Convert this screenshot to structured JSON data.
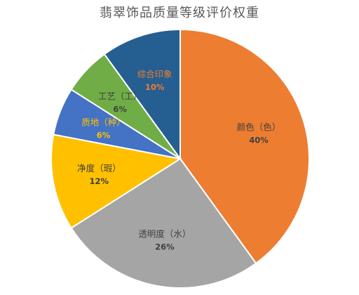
{
  "chart_data": {
    "type": "pie",
    "title": "翡翠饰品质量等级评价权重",
    "slices": [
      {
        "label": "颜色（色）",
        "value": 40,
        "value_label": "40%",
        "color": "#ED7D31",
        "label_color": "#404040"
      },
      {
        "label": "透明度（水）",
        "value": 26,
        "value_label": "26%",
        "color": "#A5A5A5",
        "label_color": "#404040"
      },
      {
        "label": "净度（瑕）",
        "value": 12,
        "value_label": "12%",
        "color": "#FFC000",
        "label_color": "#404040"
      },
      {
        "label": "质地（种）",
        "value": 6,
        "value_label": "6%",
        "color": "#4472C4",
        "label_color": "#FFC000"
      },
      {
        "label": "工艺（工）",
        "value": 6,
        "value_label": "6%",
        "color": "#70AD47",
        "label_color": "#404040"
      },
      {
        "label": "综合印象",
        "value": 10,
        "value_label": "10%",
        "color": "#255E91",
        "label_color": "#ED7D31"
      }
    ],
    "start": "12 o'clock",
    "direction": "clockwise",
    "legend": "none"
  }
}
